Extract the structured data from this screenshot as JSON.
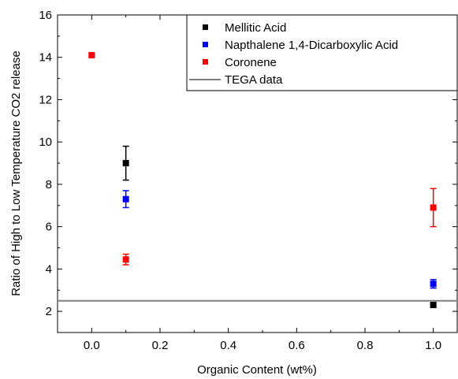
{
  "chart_data": {
    "type": "scatter",
    "xlabel": "Organic Content (wt%)",
    "ylabel": "Ratio of High to Low Temperature CO2 release",
    "xlim": [
      -0.1,
      1.07
    ],
    "ylim": [
      1,
      16
    ],
    "x_ticks": [
      0.0,
      0.2,
      0.4,
      0.6,
      0.8,
      1.0
    ],
    "x_tick_labels": [
      "0.0",
      "0.2",
      "0.4",
      "0.6",
      "0.8",
      "1.0"
    ],
    "y_ticks": [
      2,
      4,
      6,
      8,
      10,
      12,
      14,
      16
    ],
    "y_tick_labels": [
      "2",
      "4",
      "6",
      "8",
      "10",
      "12",
      "14",
      "16"
    ],
    "grid": false,
    "legend_position": "top-right",
    "series": [
      {
        "name": "Mellitic Acid",
        "color": "#000000",
        "marker": "square",
        "points": [
          {
            "x": 0.1,
            "y": 9.0,
            "err": 0.8
          },
          {
            "x": 1.0,
            "y": 2.3,
            "err": 0.1
          }
        ]
      },
      {
        "name": "Napthalene 1,4-Dicarboxylic Acid",
        "color": "#0000ff",
        "marker": "square",
        "points": [
          {
            "x": 0.1,
            "y": 7.3,
            "err": 0.4
          },
          {
            "x": 1.0,
            "y": 3.3,
            "err": 0.2
          }
        ]
      },
      {
        "name": "Coronene",
        "color": "#ff0000",
        "marker": "square",
        "points": [
          {
            "x": 0.0,
            "y": 14.1,
            "err": 0.05
          },
          {
            "x": 0.1,
            "y": 4.45,
            "err": 0.25
          },
          {
            "x": 1.0,
            "y": 6.9,
            "err": 0.9
          }
        ]
      }
    ],
    "reference_line": {
      "name": "TEGA data",
      "y": 2.5,
      "color": "#808080"
    }
  }
}
